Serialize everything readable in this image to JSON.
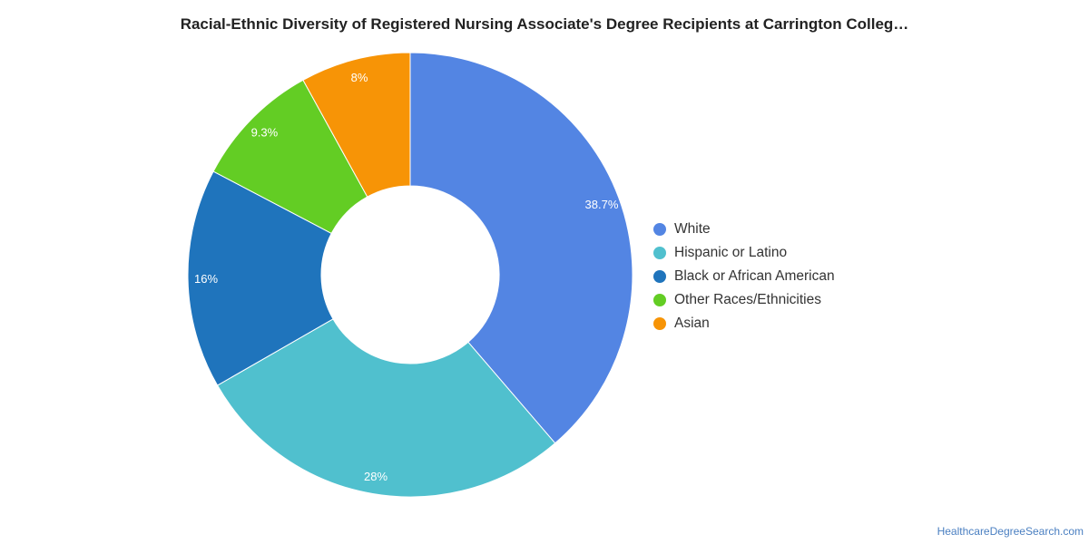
{
  "chart_data": {
    "type": "pie",
    "title": "Racial-Ethnic Diversity of Registered Nursing Associate's Degree Recipients at Carrington Colleg…",
    "slices": [
      {
        "name": "White",
        "value": 38.7,
        "label": "38.7%",
        "color": "#5385e3"
      },
      {
        "name": "Hispanic or Latino",
        "value": 28,
        "label": "28%",
        "color": "#50c0ce"
      },
      {
        "name": "Black or African American",
        "value": 16,
        "label": "16%",
        "color": "#1f74bc"
      },
      {
        "name": "Other Races/Ethnicities",
        "value": 9.3,
        "label": "9.3%",
        "color": "#63cd24"
      },
      {
        "name": "Asian",
        "value": 8,
        "label": "8%",
        "color": "#f79406"
      }
    ],
    "donut": true,
    "legend": "right"
  },
  "watermark": "HealthcareDegreeSearch.com"
}
